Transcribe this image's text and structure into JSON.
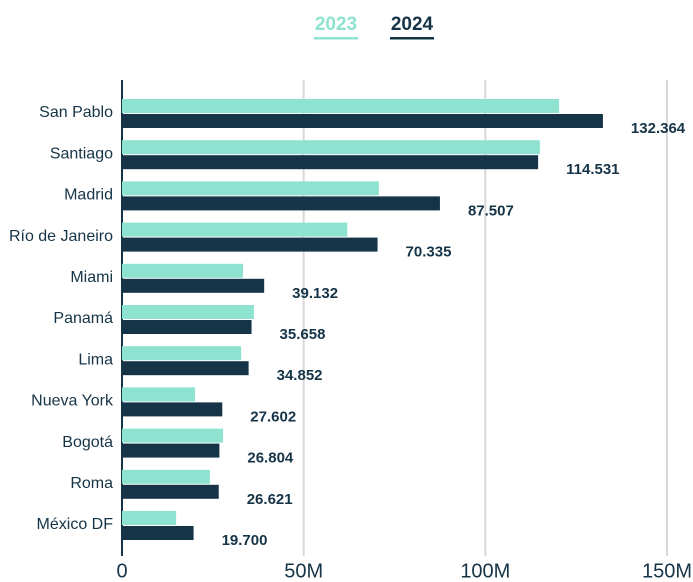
{
  "chart_data": {
    "type": "barh",
    "categories": [
      "San Pablo",
      "Santiago",
      "Madrid",
      "Río de Janeiro",
      "Miami",
      "Panamá",
      "Lima",
      "Nueva York",
      "Bogotá",
      "Roma",
      "México DF"
    ],
    "series": [
      {
        "name": "2023",
        "color": "#8de3cf",
        "values": [
          120.3,
          115,
          70.7,
          62,
          33.3,
          36.3,
          32.8,
          20.1,
          27.8,
          24.2,
          14.9
        ]
      },
      {
        "name": "2024",
        "color": "#163447",
        "values": [
          132.364,
          114.531,
          87.507,
          70.335,
          39.132,
          35.658,
          34.852,
          27.602,
          26.804,
          26.621,
          19.7
        ],
        "value_labels": [
          "132.364",
          "114.531",
          "87.507",
          "70.335",
          "39.132",
          "35.658",
          "34.852",
          "27.602",
          "26.804",
          "26.621",
          "19.700"
        ]
      }
    ],
    "xlim": [
      0,
      150
    ],
    "xticks": [
      0,
      {
        "value": 50,
        "label": "50M"
      },
      {
        "value": 100,
        "label": "100M"
      },
      {
        "value": 150,
        "label": "150M"
      }
    ],
    "grid": true,
    "legend": "top"
  }
}
